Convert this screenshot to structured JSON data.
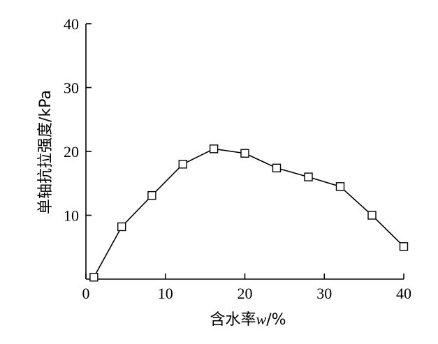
{
  "chart_data": {
    "type": "line",
    "title": "",
    "xlabel": {
      "prefix": "含水率",
      "var": "w",
      "suffix": "/%"
    },
    "ylabel": "单轴抗拉强度/kPa",
    "xlim": [
      0,
      40
    ],
    "ylim": [
      0,
      40
    ],
    "x_ticks": [
      0,
      10,
      20,
      30,
      40
    ],
    "y_ticks": [
      10,
      20,
      30,
      40
    ],
    "grid": false,
    "marker": "hollow-square",
    "series": [
      {
        "x": [
          1.0,
          4.5,
          8.3,
          12.2,
          16.1,
          20.0,
          24.0,
          28.0,
          32.0,
          36.0,
          40.0
        ],
        "y": [
          0.3,
          8.2,
          13.1,
          18.0,
          20.4,
          19.7,
          17.4,
          16.0,
          14.5,
          10.0,
          5.1
        ]
      }
    ]
  }
}
